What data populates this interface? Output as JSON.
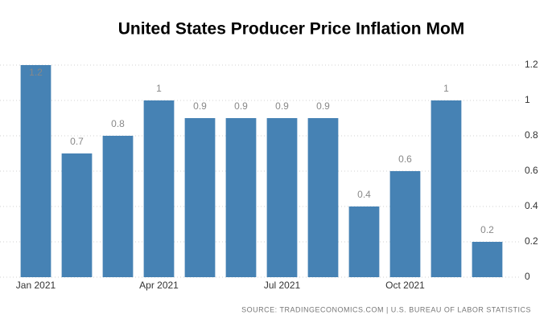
{
  "chart_data": {
    "type": "bar",
    "title": "United States Producer Price Inflation MoM",
    "source": "SOURCE: TRADINGECONOMICS.COM | U.S. BUREAU OF LABOR STATISTICS",
    "categories": [
      "Jan 2021",
      null,
      null,
      "Apr 2021",
      null,
      null,
      "Jul 2021",
      null,
      null,
      "Oct 2021",
      null,
      null
    ],
    "values": [
      1.2,
      0.7,
      0.8,
      1,
      0.9,
      0.9,
      0.9,
      0.9,
      0.4,
      0.6,
      1,
      0.2
    ],
    "color": "#4682b4",
    "ylim": [
      0,
      1.2
    ],
    "yticks": [
      0,
      0.2,
      0.4,
      0.6,
      0.8,
      1,
      1.2
    ],
    "grid": true
  }
}
